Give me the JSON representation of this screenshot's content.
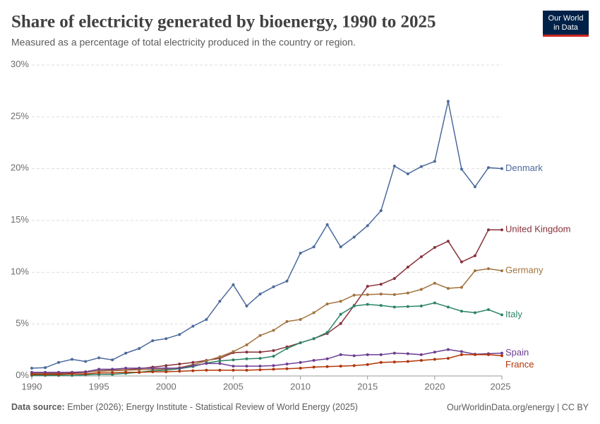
{
  "chart_data": {
    "type": "line",
    "title": "Share of electricity generated by bioenergy, 1990 to 2025",
    "subtitle": "Measured as a percentage of total electricity produced in the country or region.",
    "logo": [
      "Our World",
      "in Data"
    ],
    "source_label": "Data source:",
    "source": "Ember (2026); Energy Institute - Statistical Review of World Energy (2025)",
    "footer_right": "OurWorldinData.org/energy | CC BY",
    "x": [
      1990,
      1991,
      1992,
      1993,
      1994,
      1995,
      1996,
      1997,
      1998,
      1999,
      2000,
      2001,
      2002,
      2003,
      2004,
      2005,
      2006,
      2007,
      2008,
      2009,
      2010,
      2011,
      2012,
      2013,
      2014,
      2015,
      2016,
      2017,
      2018,
      2019,
      2020,
      2021,
      2022,
      2023,
      2024,
      2025
    ],
    "xlim": [
      1990,
      2025
    ],
    "xticks": [
      1990,
      1995,
      2000,
      2005,
      2010,
      2015,
      2020,
      2025
    ],
    "ylim": [
      0,
      30
    ],
    "yticks": [
      {
        "value": 0,
        "label": "0%"
      },
      {
        "value": 5,
        "label": "5%"
      },
      {
        "value": 10,
        "label": "10%"
      },
      {
        "value": 15,
        "label": "15%"
      },
      {
        "value": 20,
        "label": "20%"
      },
      {
        "value": 25,
        "label": "25%"
      },
      {
        "value": 30,
        "label": "30%"
      }
    ],
    "grid": true,
    "series": [
      {
        "name": "Denmark",
        "color": "#4c6a9c",
        "values": [
          0.75,
          0.8,
          1.3,
          1.6,
          1.4,
          1.75,
          1.55,
          2.2,
          2.65,
          3.4,
          3.6,
          4.0,
          4.8,
          5.45,
          7.2,
          8.8,
          6.75,
          7.9,
          8.6,
          9.15,
          11.85,
          12.45,
          14.6,
          12.45,
          13.4,
          14.5,
          15.95,
          20.25,
          19.5,
          20.2,
          20.7,
          26.5,
          19.95,
          18.25,
          20.1,
          20.0
        ]
      },
      {
        "name": "United Kingdom",
        "color": "#883039",
        "values": [
          0.2,
          0.2,
          0.25,
          0.3,
          0.35,
          0.5,
          0.55,
          0.6,
          0.7,
          0.85,
          1.0,
          1.15,
          1.3,
          1.5,
          1.7,
          2.25,
          2.3,
          2.3,
          2.45,
          2.8,
          3.2,
          3.6,
          4.1,
          5.05,
          6.8,
          8.65,
          8.85,
          9.4,
          10.5,
          11.5,
          12.4,
          13.0,
          11.0,
          11.6,
          14.1,
          14.1
        ]
      },
      {
        "name": "Germany",
        "color": "#a2723d",
        "values": [
          0.3,
          0.3,
          0.3,
          0.35,
          0.4,
          0.45,
          0.5,
          0.55,
          0.6,
          0.65,
          0.65,
          0.8,
          1.1,
          1.45,
          1.85,
          2.35,
          3.0,
          3.9,
          4.4,
          5.25,
          5.45,
          6.1,
          6.95,
          7.2,
          7.8,
          7.85,
          7.9,
          7.85,
          8.0,
          8.35,
          8.95,
          8.45,
          8.55,
          10.15,
          10.35,
          10.15
        ]
      },
      {
        "name": "Italy",
        "color": "#2c8465",
        "values": [
          0.05,
          0.05,
          0.05,
          0.05,
          0.1,
          0.15,
          0.15,
          0.25,
          0.35,
          0.5,
          0.55,
          0.7,
          0.9,
          1.25,
          1.45,
          1.55,
          1.65,
          1.7,
          1.9,
          2.65,
          3.2,
          3.6,
          4.2,
          5.95,
          6.75,
          6.9,
          6.8,
          6.65,
          6.7,
          6.75,
          7.05,
          6.65,
          6.25,
          6.1,
          6.4,
          5.9
        ]
      },
      {
        "name": "Spain",
        "color": "#6d3e91",
        "values": [
          0.35,
          0.35,
          0.35,
          0.35,
          0.4,
          0.65,
          0.65,
          0.75,
          0.75,
          0.75,
          0.75,
          0.75,
          1.0,
          1.2,
          1.2,
          0.95,
          0.95,
          0.95,
          1.0,
          1.15,
          1.3,
          1.5,
          1.65,
          2.05,
          1.95,
          2.05,
          2.05,
          2.2,
          2.15,
          2.05,
          2.3,
          2.55,
          2.35,
          2.1,
          2.15,
          2.2
        ]
      },
      {
        "name": "France",
        "color": "#b13507",
        "values": [
          0.15,
          0.15,
          0.15,
          0.2,
          0.2,
          0.3,
          0.3,
          0.35,
          0.35,
          0.4,
          0.4,
          0.45,
          0.5,
          0.55,
          0.55,
          0.55,
          0.55,
          0.6,
          0.65,
          0.7,
          0.75,
          0.85,
          0.9,
          0.95,
          1.0,
          1.1,
          1.3,
          1.35,
          1.4,
          1.5,
          1.6,
          1.7,
          2.05,
          2.05,
          2.05,
          1.95
        ]
      }
    ]
  }
}
